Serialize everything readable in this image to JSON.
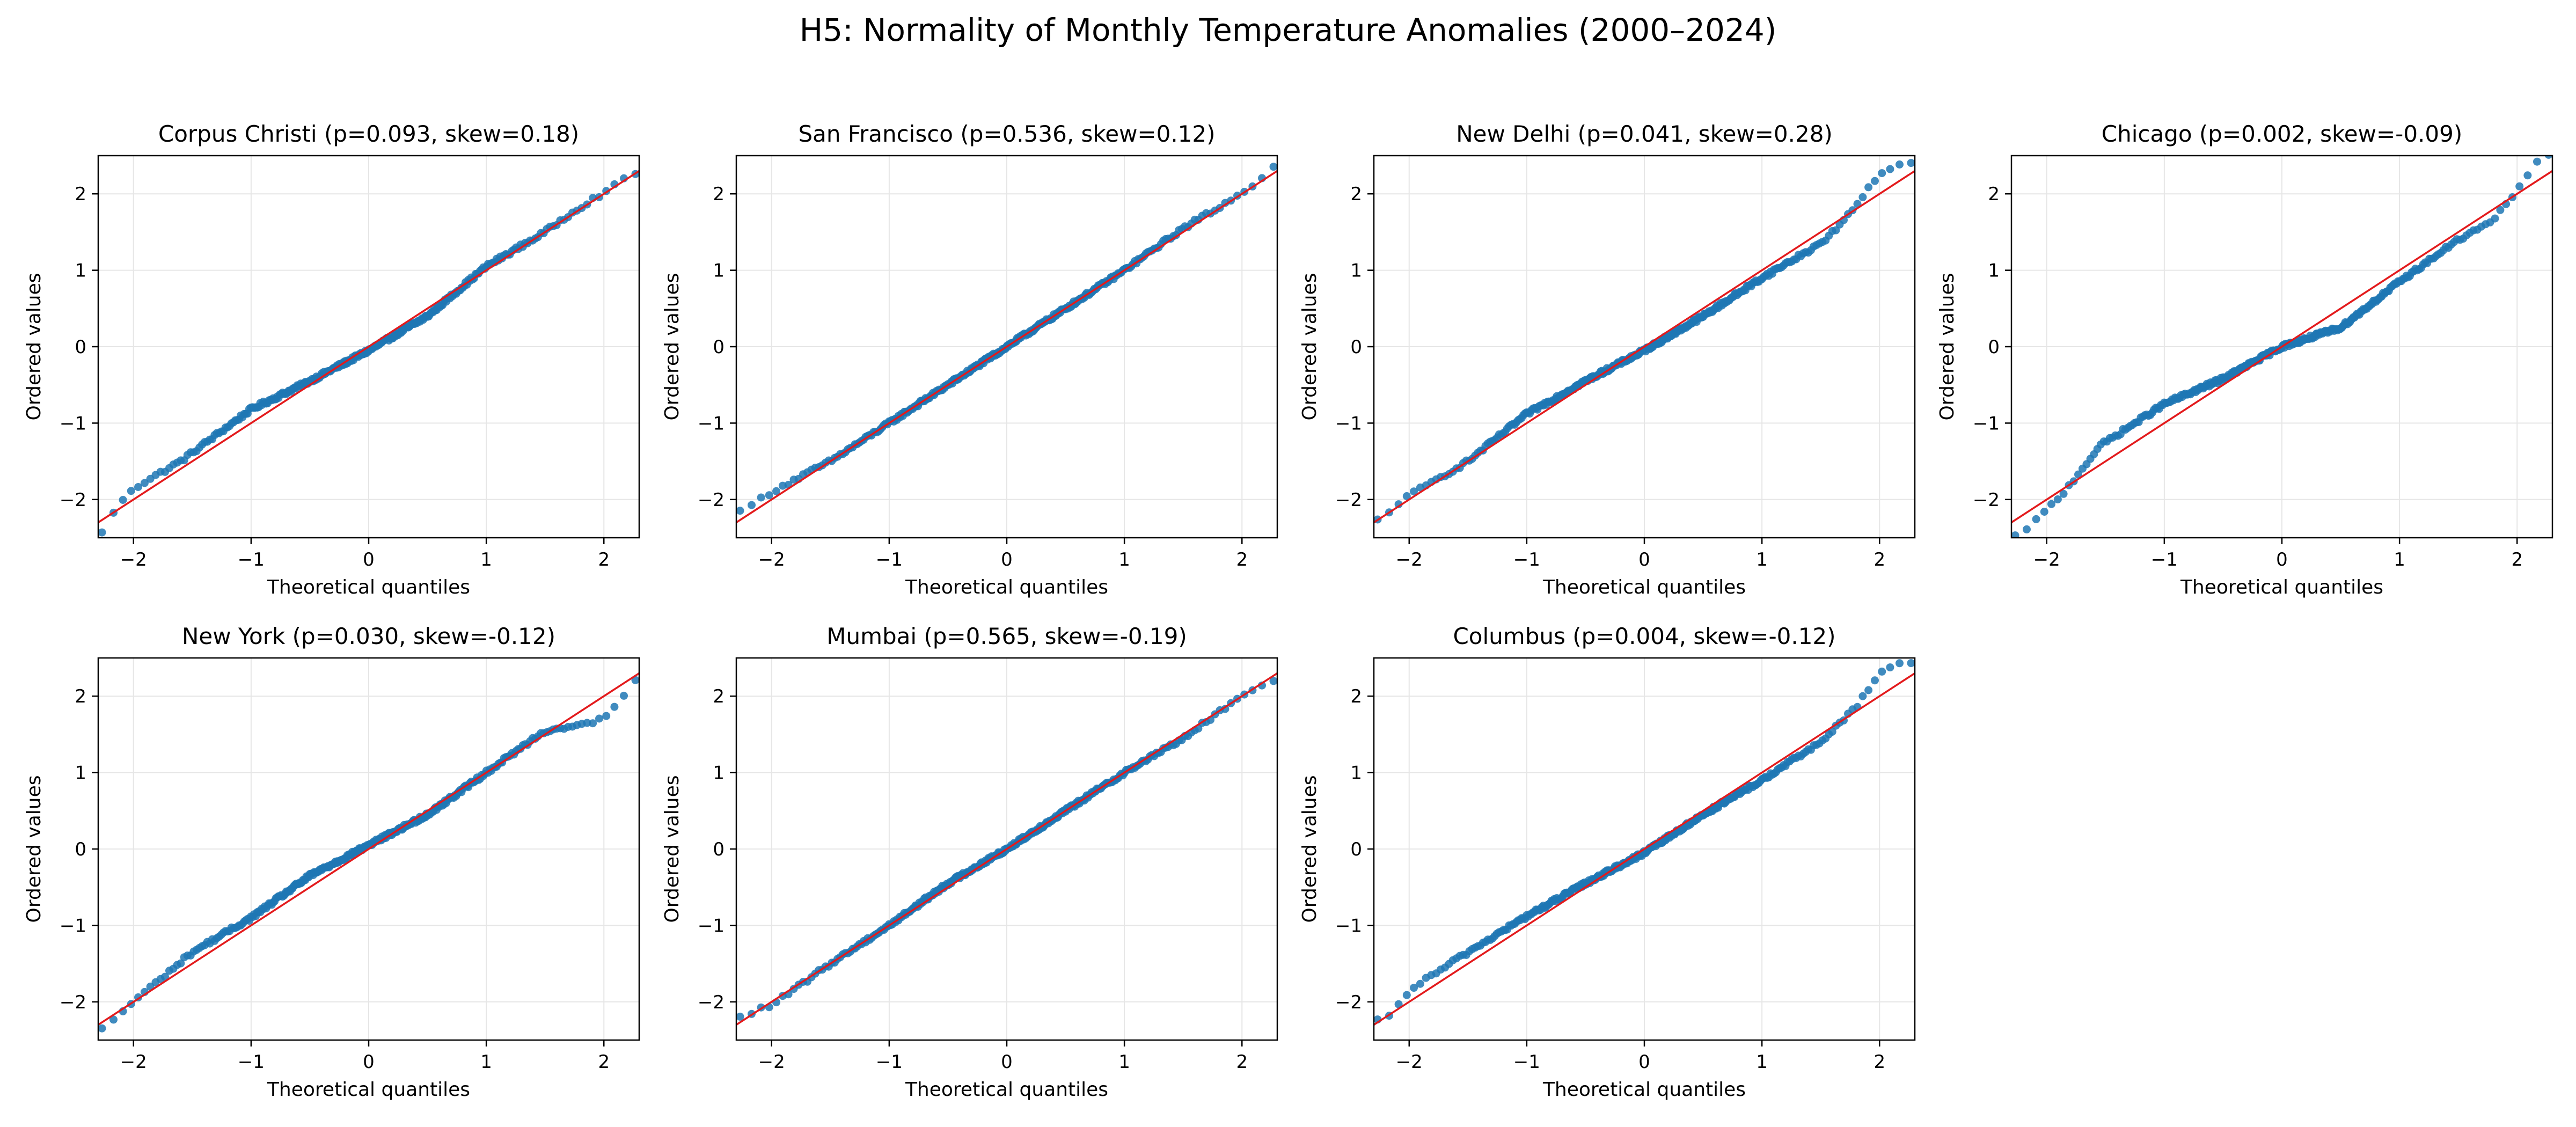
{
  "figure": {
    "title": "H5: Normality of Monthly Temperature Anomalies (2000–2024)",
    "colors": {
      "points": "#1f77b4",
      "reference_line": "#e31a1c",
      "grid": "#e6e6e6",
      "axes": "#000000"
    },
    "xlabel": "Theoretical quantiles",
    "ylabel": "Ordered values",
    "xlim": [
      -2.3,
      2.3
    ],
    "ylim": [
      -2.5,
      2.5
    ],
    "xticks": [
      -2,
      -1,
      0,
      1,
      2
    ],
    "yticks": [
      -2,
      -1,
      0,
      1,
      2
    ],
    "tick_labels": [
      "−2",
      "−1",
      "0",
      "1",
      "2"
    ]
  },
  "chart_data": [
    {
      "type": "scatter",
      "title": "Corpus Christi  (p=0.093, skew=0.18)",
      "xlabel": "Theoretical quantiles",
      "ylabel": "Ordered values",
      "xlim": [
        -2.3,
        2.3
      ],
      "ylim": [
        -2.5,
        2.5
      ],
      "grid": true,
      "reference_line": {
        "slope": 1.0,
        "intercept": 0.0
      },
      "anchors": [
        [
          -2.3,
          -2.5
        ],
        [
          -2.05,
          -1.9
        ],
        [
          -1.6,
          -1.5
        ],
        [
          -1.0,
          -0.82
        ],
        [
          -0.5,
          -0.45
        ],
        [
          0.0,
          -0.05
        ],
        [
          0.5,
          0.4
        ],
        [
          1.0,
          1.05
        ],
        [
          1.5,
          1.5
        ],
        [
          1.75,
          1.78
        ],
        [
          2.0,
          2.02
        ],
        [
          2.3,
          2.3
        ]
      ],
      "n": 300
    },
    {
      "type": "scatter",
      "title": "San Francisco  (p=0.536, skew=0.12)",
      "xlabel": "Theoretical quantiles",
      "ylabel": "Ordered values",
      "xlim": [
        -2.3,
        2.3
      ],
      "ylim": [
        -2.5,
        2.5
      ],
      "grid": true,
      "reference_line": {
        "slope": 1.0,
        "intercept": 0.0
      },
      "anchors": [
        [
          -2.3,
          -2.2
        ],
        [
          -2.0,
          -1.9
        ],
        [
          -1.5,
          -1.5
        ],
        [
          -1.0,
          -1.0
        ],
        [
          -0.5,
          -0.5
        ],
        [
          0.0,
          0.0
        ],
        [
          0.5,
          0.5
        ],
        [
          1.0,
          1.0
        ],
        [
          1.5,
          1.55
        ],
        [
          2.0,
          2.0
        ],
        [
          2.3,
          2.4
        ]
      ],
      "n": 300
    },
    {
      "type": "scatter",
      "title": "New Delhi  (p=0.041, skew=0.28)",
      "xlabel": "Theoretical quantiles",
      "ylabel": "Ordered values",
      "xlim": [
        -2.3,
        2.3
      ],
      "ylim": [
        -2.5,
        2.5
      ],
      "grid": true,
      "reference_line": {
        "slope": 1.0,
        "intercept": 0.0
      },
      "anchors": [
        [
          -2.3,
          -2.3
        ],
        [
          -2.0,
          -1.95
        ],
        [
          -1.5,
          -1.5
        ],
        [
          -1.0,
          -0.88
        ],
        [
          -0.5,
          -0.45
        ],
        [
          0.0,
          -0.05
        ],
        [
          0.5,
          0.4
        ],
        [
          1.0,
          0.9
        ],
        [
          1.5,
          1.35
        ],
        [
          1.7,
          1.65
        ],
        [
          2.0,
          2.25
        ],
        [
          2.15,
          2.4
        ]
      ],
      "n": 300
    },
    {
      "type": "scatter",
      "title": "Chicago  (p=0.002, skew=-0.09)",
      "xlabel": "Theoretical quantiles",
      "ylabel": "Ordered values",
      "xlim": [
        -2.3,
        2.3
      ],
      "ylim": [
        -2.5,
        2.5
      ],
      "grid": true,
      "reference_line": {
        "slope": 1.0,
        "intercept": 0.0
      },
      "anchors": [
        [
          -2.2,
          -2.45
        ],
        [
          -1.85,
          -1.9
        ],
        [
          -1.55,
          -1.3
        ],
        [
          -1.0,
          -0.75
        ],
        [
          -0.5,
          -0.42
        ],
        [
          0.0,
          0.0
        ],
        [
          0.5,
          0.25
        ],
        [
          1.0,
          0.85
        ],
        [
          1.5,
          1.4
        ],
        [
          1.8,
          1.65
        ],
        [
          2.0,
          2.05
        ],
        [
          2.2,
          2.5
        ]
      ],
      "n": 300
    },
    {
      "type": "scatter",
      "title": "New York  (p=0.030, skew=-0.12)",
      "xlabel": "Theoretical quantiles",
      "ylabel": "Ordered values",
      "xlim": [
        -2.3,
        2.3
      ],
      "ylim": [
        -2.5,
        2.5
      ],
      "grid": true,
      "reference_line": {
        "slope": 1.0,
        "intercept": 0.0
      },
      "anchors": [
        [
          -2.3,
          -2.4
        ],
        [
          -2.0,
          -2.0
        ],
        [
          -1.5,
          -1.35
        ],
        [
          -1.0,
          -0.9
        ],
        [
          -0.5,
          -0.35
        ],
        [
          0.0,
          0.05
        ],
        [
          0.5,
          0.45
        ],
        [
          1.0,
          1.0
        ],
        [
          1.5,
          1.55
        ],
        [
          1.8,
          1.62
        ],
        [
          2.0,
          1.7
        ],
        [
          2.3,
          2.25
        ]
      ],
      "n": 300
    },
    {
      "type": "scatter",
      "title": "Mumbai  (p=0.565, skew=-0.19)",
      "xlabel": "Theoretical quantiles",
      "ylabel": "Ordered values",
      "xlim": [
        -2.3,
        2.3
      ],
      "ylim": [
        -2.5,
        2.5
      ],
      "grid": true,
      "reference_line": {
        "slope": 1.0,
        "intercept": 0.0
      },
      "anchors": [
        [
          -2.3,
          -2.2
        ],
        [
          -2.0,
          -2.05
        ],
        [
          -1.5,
          -1.5
        ],
        [
          -1.0,
          -1.0
        ],
        [
          -0.5,
          -0.45
        ],
        [
          0.0,
          0.0
        ],
        [
          0.5,
          0.5
        ],
        [
          1.0,
          1.0
        ],
        [
          1.5,
          1.45
        ],
        [
          2.0,
          2.0
        ],
        [
          2.3,
          2.25
        ]
      ],
      "n": 300
    },
    {
      "type": "scatter",
      "title": "Columbus  (p=0.004, skew=-0.12)",
      "xlabel": "Theoretical quantiles",
      "ylabel": "Ordered values",
      "xlim": [
        -2.3,
        2.3
      ],
      "ylim": [
        -2.5,
        2.5
      ],
      "grid": true,
      "reference_line": {
        "slope": 1.0,
        "intercept": 0.0
      },
      "anchors": [
        [
          -2.2,
          -2.25
        ],
        [
          -2.0,
          -1.85
        ],
        [
          -1.5,
          -1.35
        ],
        [
          -1.0,
          -0.88
        ],
        [
          -0.5,
          -0.45
        ],
        [
          0.0,
          -0.05
        ],
        [
          0.5,
          0.45
        ],
        [
          1.0,
          0.9
        ],
        [
          1.5,
          1.4
        ],
        [
          1.8,
          1.85
        ],
        [
          2.0,
          2.3
        ],
        [
          2.2,
          2.45
        ]
      ],
      "n": 300
    }
  ]
}
